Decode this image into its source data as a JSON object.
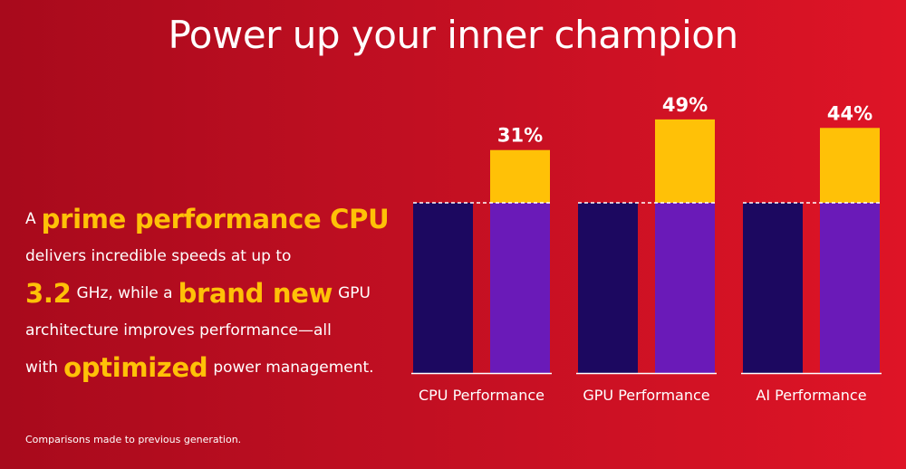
{
  "title": "Power up your inner champion",
  "description": {
    "l1_pre": "A",
    "l1_hl": "prime performance CPU",
    "l2": "delivers incredible speeds at up to",
    "l3_hl1": "3.2",
    "l3_mid": "GHz, while a",
    "l3_hl2": "brand new",
    "l3_post": "GPU",
    "l4": "architecture improves performance—all",
    "l5_pre": "with",
    "l5_hl": "optimized",
    "l5_post": "power management."
  },
  "footnote": "Comparisons made to previous generation.",
  "colors": {
    "background_start": "#a80a1c",
    "background_end": "#de1426",
    "previous_generation": "#1c0860",
    "new_generation": "#6a1ab8",
    "improvement": "#ffc107",
    "highlight_text": "#ffc107"
  },
  "chart_data": {
    "type": "bar",
    "categories": [
      "CPU Performance",
      "GPU Performance",
      "AI Performance"
    ],
    "baseline": 100,
    "improvement_percent": [
      31,
      49,
      44
    ],
    "value_labels": [
      "31%",
      "49%",
      "44%"
    ],
    "series": [
      {
        "values": [
          100,
          100,
          100
        ]
      },
      {
        "values": [
          131,
          149,
          144
        ]
      }
    ],
    "ylim": [
      0,
      150
    ]
  }
}
